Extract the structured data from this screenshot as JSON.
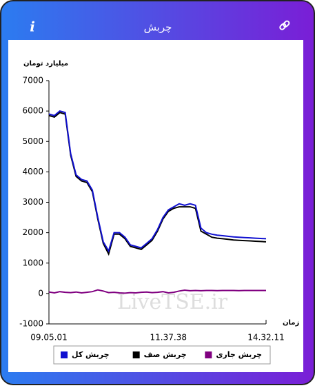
{
  "header": {
    "info_icon": "i",
    "title": "چربش"
  },
  "chart_data": {
    "type": "line",
    "y_label": "میلیارد تومان",
    "x_label": "زمان",
    "watermark": "LiveTSE.ir",
    "categories": [
      "09.05.01",
      null,
      null,
      null,
      null,
      null,
      null,
      null,
      null,
      null,
      null,
      null,
      null,
      null,
      null,
      null,
      null,
      null,
      null,
      null,
      null,
      null,
      "11.37.38",
      null,
      null,
      null,
      null,
      null,
      null,
      null,
      null,
      null,
      null,
      null,
      null,
      null,
      null,
      null,
      null,
      null,
      "14.32.11"
    ],
    "ylim": [
      -1000,
      7000
    ],
    "yticks": [
      -1000,
      0,
      1000,
      2000,
      3000,
      4000,
      5000,
      6000,
      7000
    ],
    "legend": "bottom",
    "series": [
      {
        "name": "چربش کل",
        "color": "#1010d0",
        "values": [
          5900,
          5850,
          6000,
          5950,
          4600,
          3900,
          3750,
          3700,
          3400,
          2500,
          1700,
          1400,
          2000,
          2000,
          1850,
          1600,
          1550,
          1500,
          1650,
          1800,
          2100,
          2500,
          2750,
          2850,
          2950,
          2900,
          2950,
          2900,
          2150,
          2000,
          1950,
          1920,
          1900,
          1880,
          1860,
          1850,
          1840,
          1830,
          1820,
          1810,
          1800
        ]
      },
      {
        "name": "چربش صف",
        "color": "#000000",
        "values": [
          5850,
          5800,
          5950,
          5900,
          4550,
          3850,
          3700,
          3650,
          3350,
          2450,
          1650,
          1300,
          1950,
          1950,
          1800,
          1550,
          1500,
          1450,
          1600,
          1750,
          2050,
          2450,
          2700,
          2800,
          2850,
          2850,
          2850,
          2800,
          2050,
          1950,
          1850,
          1820,
          1800,
          1780,
          1760,
          1750,
          1740,
          1730,
          1720,
          1710,
          1700
        ]
      },
      {
        "name": "چربش جاری",
        "color": "#800080",
        "values": [
          50,
          20,
          60,
          40,
          30,
          50,
          20,
          40,
          60,
          120,
          80,
          30,
          40,
          20,
          10,
          30,
          20,
          40,
          50,
          30,
          40,
          60,
          20,
          40,
          80,
          110,
          90,
          100,
          90,
          100,
          100,
          95,
          100,
          100,
          100,
          95,
          100,
          100,
          100,
          100,
          100
        ]
      }
    ]
  }
}
